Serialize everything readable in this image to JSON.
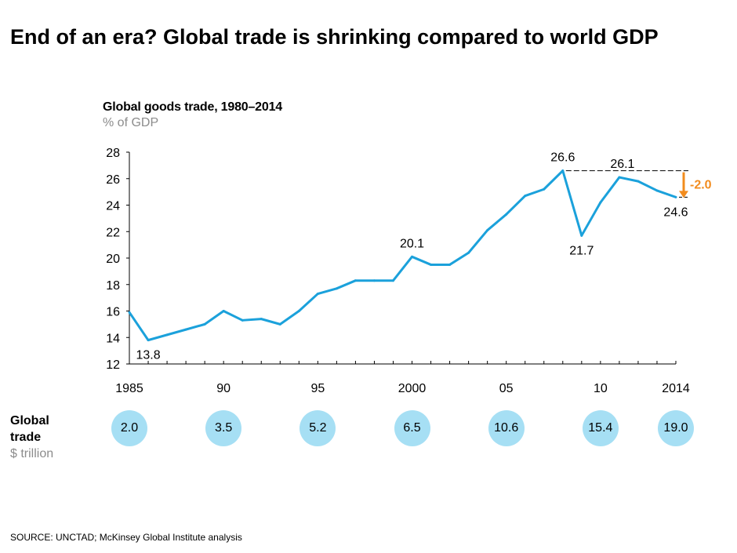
{
  "page": {
    "title": "End of an era? Global trade is shrinking compared to world GDP"
  },
  "chart_data": {
    "type": "line",
    "title": "Global goods trade, 1980–2014",
    "subtitle": "% of GDP",
    "xlabel": "",
    "ylabel": "",
    "ylim": [
      12,
      28
    ],
    "xlim": [
      1985,
      2014
    ],
    "yticks": [
      "12",
      "14",
      "16",
      "18",
      "20",
      "22",
      "24",
      "26",
      "28"
    ],
    "xticks": [
      {
        "x": 1985,
        "label": "1985"
      },
      {
        "x": 1990,
        "label": "90"
      },
      {
        "x": 1995,
        "label": "95"
      },
      {
        "x": 2000,
        "label": "2000"
      },
      {
        "x": 2005,
        "label": "05"
      },
      {
        "x": 2010,
        "label": "10"
      },
      {
        "x": 2014,
        "label": "2014"
      }
    ],
    "grid": false,
    "color": "#1ba1db",
    "series": [
      {
        "x": [
          1985,
          1986,
          1987,
          1988,
          1989,
          1990,
          1991,
          1992,
          1993,
          1994,
          1995,
          1996,
          1997,
          1998,
          1999,
          2000,
          2001,
          2002,
          2003,
          2004,
          2005,
          2006,
          2007,
          2008,
          2009,
          2010,
          2011,
          2012,
          2013,
          2014
        ],
        "values": [
          15.9,
          13.8,
          14.2,
          14.6,
          15.0,
          16.0,
          15.3,
          15.4,
          15.0,
          16.0,
          17.3,
          17.7,
          18.3,
          18.3,
          18.3,
          20.1,
          19.5,
          19.5,
          20.4,
          22.1,
          23.3,
          24.7,
          25.2,
          26.6,
          21.7,
          24.2,
          26.1,
          25.8,
          25.1,
          24.6
        ]
      }
    ],
    "data_labels": [
      {
        "x": 1986,
        "y": 13.8,
        "label": "13.8",
        "pos": "below"
      },
      {
        "x": 2000,
        "y": 20.1,
        "label": "20.1",
        "pos": "above"
      },
      {
        "x": 2008,
        "y": 26.6,
        "label": "26.6",
        "pos": "above"
      },
      {
        "x": 2009,
        "y": 21.7,
        "label": "21.7",
        "pos": "below"
      },
      {
        "x": 2011,
        "y": 26.1,
        "label": "26.1",
        "pos": "above"
      },
      {
        "x": 2014,
        "y": 24.6,
        "label": "24.6",
        "pos": "below"
      }
    ],
    "annotation": {
      "label": "-2.0",
      "color": "#f28c1e",
      "from": 26.6,
      "to": 24.6,
      "x": 2014,
      "reference_from": 2008
    }
  },
  "global_trade": {
    "label_line1": "Global",
    "label_line2": "trade",
    "unit": "$ trillion",
    "items": [
      {
        "year": 1985,
        "value": "2.0"
      },
      {
        "year": 1990,
        "value": "3.5"
      },
      {
        "year": 1995,
        "value": "5.2"
      },
      {
        "year": 2000,
        "value": "6.5"
      },
      {
        "year": 2005,
        "value": "10.6"
      },
      {
        "year": 2010,
        "value": "15.4"
      },
      {
        "year": 2014,
        "value": "19.0"
      }
    ]
  },
  "source": "SOURCE:  UNCTAD;  McKinsey Global Institute analysis"
}
